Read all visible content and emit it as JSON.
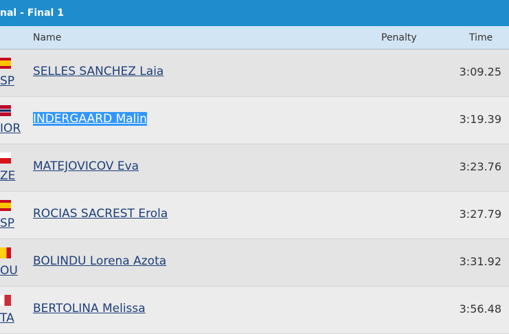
{
  "header": {
    "title": "nal - Final 1"
  },
  "table": {
    "columns": [
      "Name",
      "Penalty",
      "Time"
    ],
    "rows": [
      {
        "country": "SP",
        "name": "SELLES SANCHEZ Laia",
        "time": "3:09.25"
      },
      {
        "country": "IOR",
        "name": "INDERGAARD Malin",
        "time": "3:19.39"
      },
      {
        "country": "ZE",
        "name": "MATEJOVICOV Eva",
        "time": "3:23.76"
      },
      {
        "country": "SP",
        "name": "ROCIAS SACREST Erola",
        "time": "3:27.79"
      },
      {
        "country": "OU",
        "name": "BOLINDU Lorena Azota",
        "time": "3:31.92"
      },
      {
        "country": "TA",
        "name": "BERTOLINA Melissa",
        "time": "3:56.48"
      }
    ]
  }
}
